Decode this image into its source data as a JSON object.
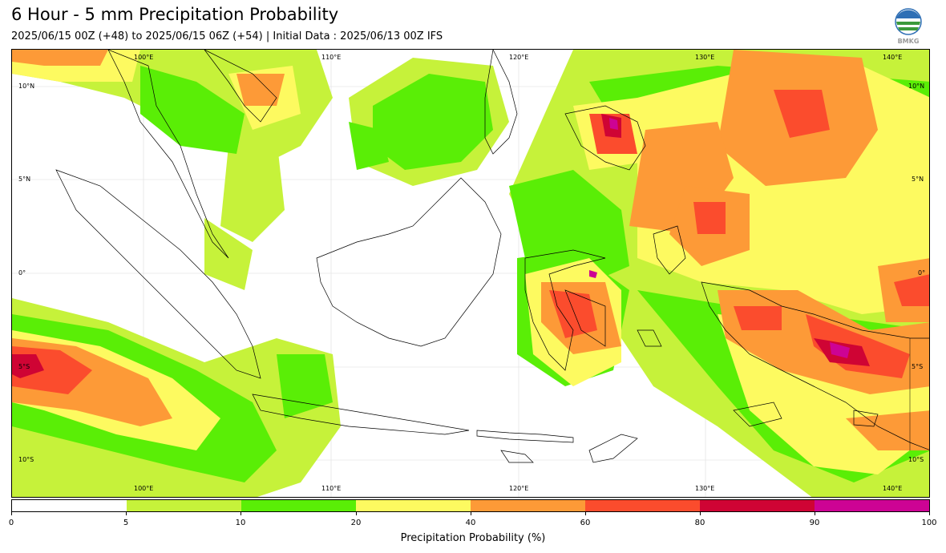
{
  "title": "6 Hour - 5 mm Precipitation Probability",
  "subtitle": "2025/06/15 00Z (+48) to 2025/06/15 06Z (+54) | Initial Data : 2025/06/13 00Z IFS",
  "logo": {
    "icon": "bmkg-logo-icon",
    "text": "BMKG"
  },
  "map": {
    "lon_labels": [
      "100°E",
      "110°E",
      "120°E",
      "130°E",
      "140°E"
    ],
    "lat_labels": [
      "10°N",
      "5°N",
      "0°",
      "5°S",
      "10°S"
    ]
  },
  "colorbar": {
    "ticks": [
      "0",
      "5",
      "10",
      "20",
      "40",
      "60",
      "80",
      "90",
      "100"
    ],
    "colors": [
      "#ffffff",
      "#c6f23a",
      "#5aee06",
      "#fdfa60",
      "#fd9a37",
      "#fb4c2d",
      "#cf0434",
      "#cd0394"
    ],
    "label": "Precipitation Probability (%)"
  }
}
